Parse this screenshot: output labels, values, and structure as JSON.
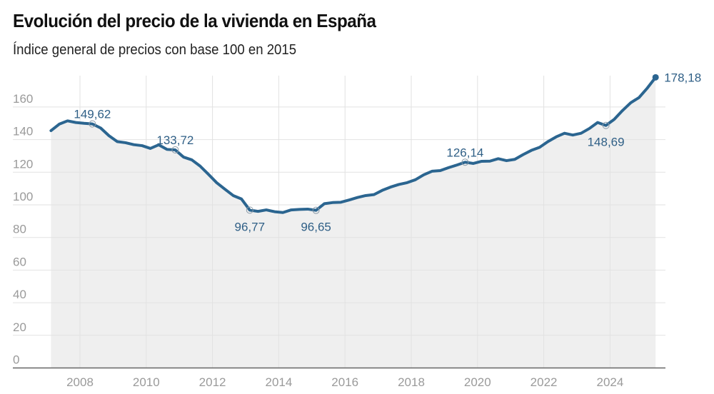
{
  "chart_data": {
    "type": "area",
    "title": "Evolución del precio de la vivienda en España",
    "subtitle": "Índice general de precios con base 100 en 2015",
    "xlabel": "",
    "ylabel": "",
    "frequency": "quarterly",
    "start": "2007-Q1",
    "end": "2025-Q2",
    "x_ticks": [
      "2008",
      "2010",
      "2012",
      "2014",
      "2016",
      "2018",
      "2020",
      "2022",
      "2024"
    ],
    "y_ticks": [
      "0",
      "20",
      "40",
      "60",
      "80",
      "100",
      "120",
      "140",
      "160"
    ],
    "ylim": [
      0,
      178.18
    ],
    "grid": true,
    "values": [
      145.5,
      149.5,
      151.5,
      150.5,
      150,
      149.62,
      147.1,
      142.4,
      138.8,
      138.1,
      136.9,
      136.3,
      134.6,
      136.8,
      134,
      133.72,
      129.3,
      127.6,
      123.8,
      118.8,
      113.6,
      109.6,
      105.7,
      103.6,
      96.77,
      96,
      96.9,
      95.8,
      95.3,
      96.9,
      97.2,
      97.4,
      96.65,
      100.7,
      101.4,
      101.6,
      103,
      104.5,
      105.7,
      106.3,
      108.9,
      110.9,
      112.5,
      113.6,
      115.4,
      118.4,
      120.6,
      121,
      122.8,
      124.4,
      126.14,
      125.4,
      126.7,
      126.8,
      128.3,
      127.1,
      127.9,
      130.8,
      133.4,
      135.3,
      138.8,
      141.7,
      143.9,
      142.8,
      143.9,
      146.8,
      150.5,
      148.69,
      152.4,
      157.8,
      162.6,
      165.8,
      171.6,
      178.18
    ],
    "annotations": [
      {
        "index": 5,
        "label": "149,62",
        "pos": "above"
      },
      {
        "index": 15,
        "label": "133,72",
        "pos": "above"
      },
      {
        "index": 24,
        "label": "96,77",
        "pos": "below"
      },
      {
        "index": 32,
        "label": "96,65",
        "pos": "below"
      },
      {
        "index": 50,
        "label": "126,14",
        "pos": "above"
      },
      {
        "index": 67,
        "label": "148,69",
        "pos": "below"
      },
      {
        "index": 73,
        "label": "178,18",
        "pos": "right"
      }
    ],
    "colors": {
      "line": "#2b6590",
      "area": "#efefef",
      "grid": "#e2e2e2",
      "axis": "#666666",
      "label": "#2f5f86"
    }
  }
}
